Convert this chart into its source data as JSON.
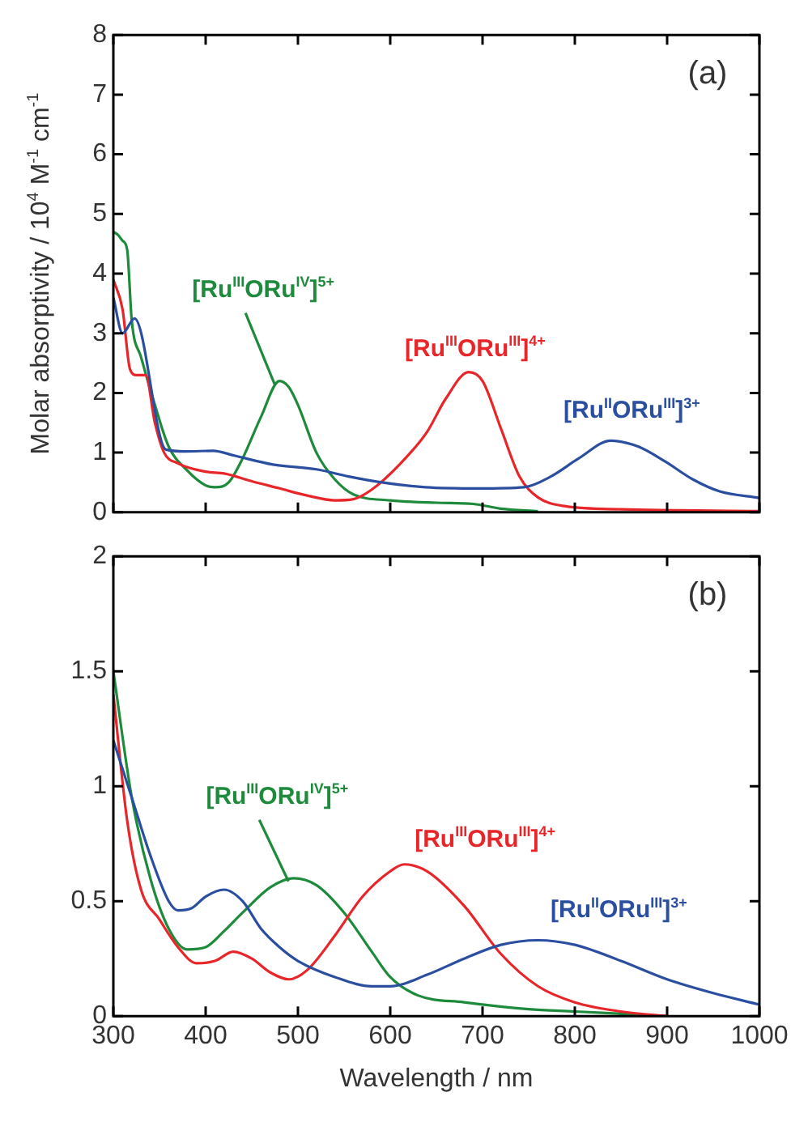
{
  "chart_data": [
    {
      "type": "line",
      "ylabel": "Molar absorptivity / 10$^{4}$ M$^{-1}$ cm$^{-1}$",
      "annotations": [
        "(a)"
      ],
      "xlim": [
        300,
        1000
      ],
      "xticks": [
        300,
        400,
        500,
        600,
        700,
        800,
        900,
        1000
      ],
      "ylim": [
        0,
        8
      ],
      "yticks": [
        0,
        1,
        2,
        3,
        4,
        5,
        6,
        7,
        8
      ],
      "tick_labels": "y",
      "legend": false,
      "grid": false,
      "series": [
        {
          "name": "[Ru$^{II}$ORu$^{III}$]$^{3+}$",
          "color": "#2a4ea0",
          "x": [
            300,
            310,
            323,
            357,
            378,
            408,
            431,
            473,
            520,
            555,
            591,
            638,
            697,
            745,
            774,
            804,
            839,
            869,
            898,
            928,
            957,
            1000
          ],
          "values": [
            3.6,
            3.0,
            3.25,
            1.05,
            1.02,
            1.03,
            0.95,
            0.8,
            0.72,
            0.6,
            0.5,
            0.42,
            0.4,
            0.42,
            0.6,
            0.9,
            1.2,
            1.1,
            0.85,
            0.55,
            0.35,
            0.24
          ]
        },
        {
          "name": "[Ru$^{III}$ORu$^{III}$]$^{4+}$",
          "color": "#e8262a",
          "x": [
            300,
            310,
            318,
            325,
            335,
            345,
            355,
            370,
            400,
            420,
            450,
            480,
            510,
            540,
            560,
            580,
            610,
            640,
            660,
            685,
            700,
            720,
            740,
            760,
            790,
            850,
            1000
          ],
          "values": [
            3.9,
            3.4,
            2.4,
            2.3,
            2.3,
            1.5,
            1.0,
            0.82,
            0.68,
            0.65,
            0.52,
            0.4,
            0.28,
            0.2,
            0.22,
            0.38,
            0.8,
            1.35,
            1.9,
            2.35,
            2.2,
            1.4,
            0.6,
            0.25,
            0.1,
            0.05,
            0.02
          ]
        },
        {
          "name": "[Ru$^{III}$ORu$^{IV}$]$^{5+}$",
          "color": "#1e8a3c",
          "x": [
            300,
            305,
            310,
            315,
            320,
            330,
            345,
            360,
            380,
            400,
            410,
            425,
            440,
            460,
            480,
            490,
            500,
            520,
            540,
            560,
            600,
            650,
            690,
            720,
            760
          ],
          "values": [
            4.7,
            4.65,
            4.55,
            4.4,
            3.2,
            2.6,
            1.8,
            1.1,
            0.7,
            0.45,
            0.42,
            0.5,
            0.9,
            1.6,
            2.2,
            2.1,
            1.8,
            1.0,
            0.55,
            0.3,
            0.2,
            0.16,
            0.14,
            0.06,
            0.02
          ]
        }
      ]
    },
    {
      "type": "line",
      "xlabel": "Wavelength / nm",
      "annotations": [
        "(b)"
      ],
      "xlim": [
        300,
        1000
      ],
      "xticks": [
        300,
        400,
        500,
        600,
        700,
        800,
        900,
        1000
      ],
      "ylim": [
        0,
        2
      ],
      "yticks": [
        0,
        0.5,
        1,
        1.5,
        2
      ],
      "legend": false,
      "grid": false,
      "series": [
        {
          "name": "[Ru$^{II}$ORu$^{III}$]$^{3+}$",
          "color": "#2a4ea0",
          "x": [
            300,
            320,
            340,
            360,
            370,
            385,
            400,
            420,
            440,
            460,
            480,
            500,
            540,
            580,
            600,
            640,
            680,
            720,
            760,
            800,
            850,
            900,
            950,
            1000
          ],
          "values": [
            1.2,
            0.95,
            0.7,
            0.5,
            0.46,
            0.47,
            0.52,
            0.55,
            0.5,
            0.38,
            0.3,
            0.24,
            0.17,
            0.13,
            0.13,
            0.18,
            0.25,
            0.31,
            0.33,
            0.31,
            0.24,
            0.16,
            0.1,
            0.05
          ]
        },
        {
          "name": "[Ru$^{III}$ORu$^{III}$]$^{4+}$",
          "color": "#e8262a",
          "x": [
            300,
            315,
            330,
            350,
            370,
            390,
            410,
            430,
            450,
            470,
            490,
            510,
            540,
            570,
            600,
            615,
            640,
            680,
            720,
            760,
            800,
            850,
            900
          ],
          "values": [
            1.4,
            0.85,
            0.55,
            0.42,
            0.3,
            0.23,
            0.24,
            0.28,
            0.25,
            0.19,
            0.16,
            0.2,
            0.35,
            0.52,
            0.63,
            0.66,
            0.63,
            0.48,
            0.27,
            0.13,
            0.06,
            0.02,
            0
          ]
        },
        {
          "name": "[Ru$^{III}$ORu$^{IV}$]$^{5+}$",
          "color": "#1e8a3c",
          "x": [
            300,
            320,
            340,
            360,
            380,
            400,
            420,
            440,
            470,
            495,
            520,
            550,
            580,
            600,
            630,
            680,
            750,
            800,
            850,
            900
          ],
          "values": [
            1.5,
            0.95,
            0.6,
            0.38,
            0.29,
            0.3,
            0.37,
            0.45,
            0.56,
            0.6,
            0.57,
            0.45,
            0.28,
            0.17,
            0.09,
            0.06,
            0.03,
            0.02,
            0.01,
            0
          ]
        }
      ]
    }
  ]
}
